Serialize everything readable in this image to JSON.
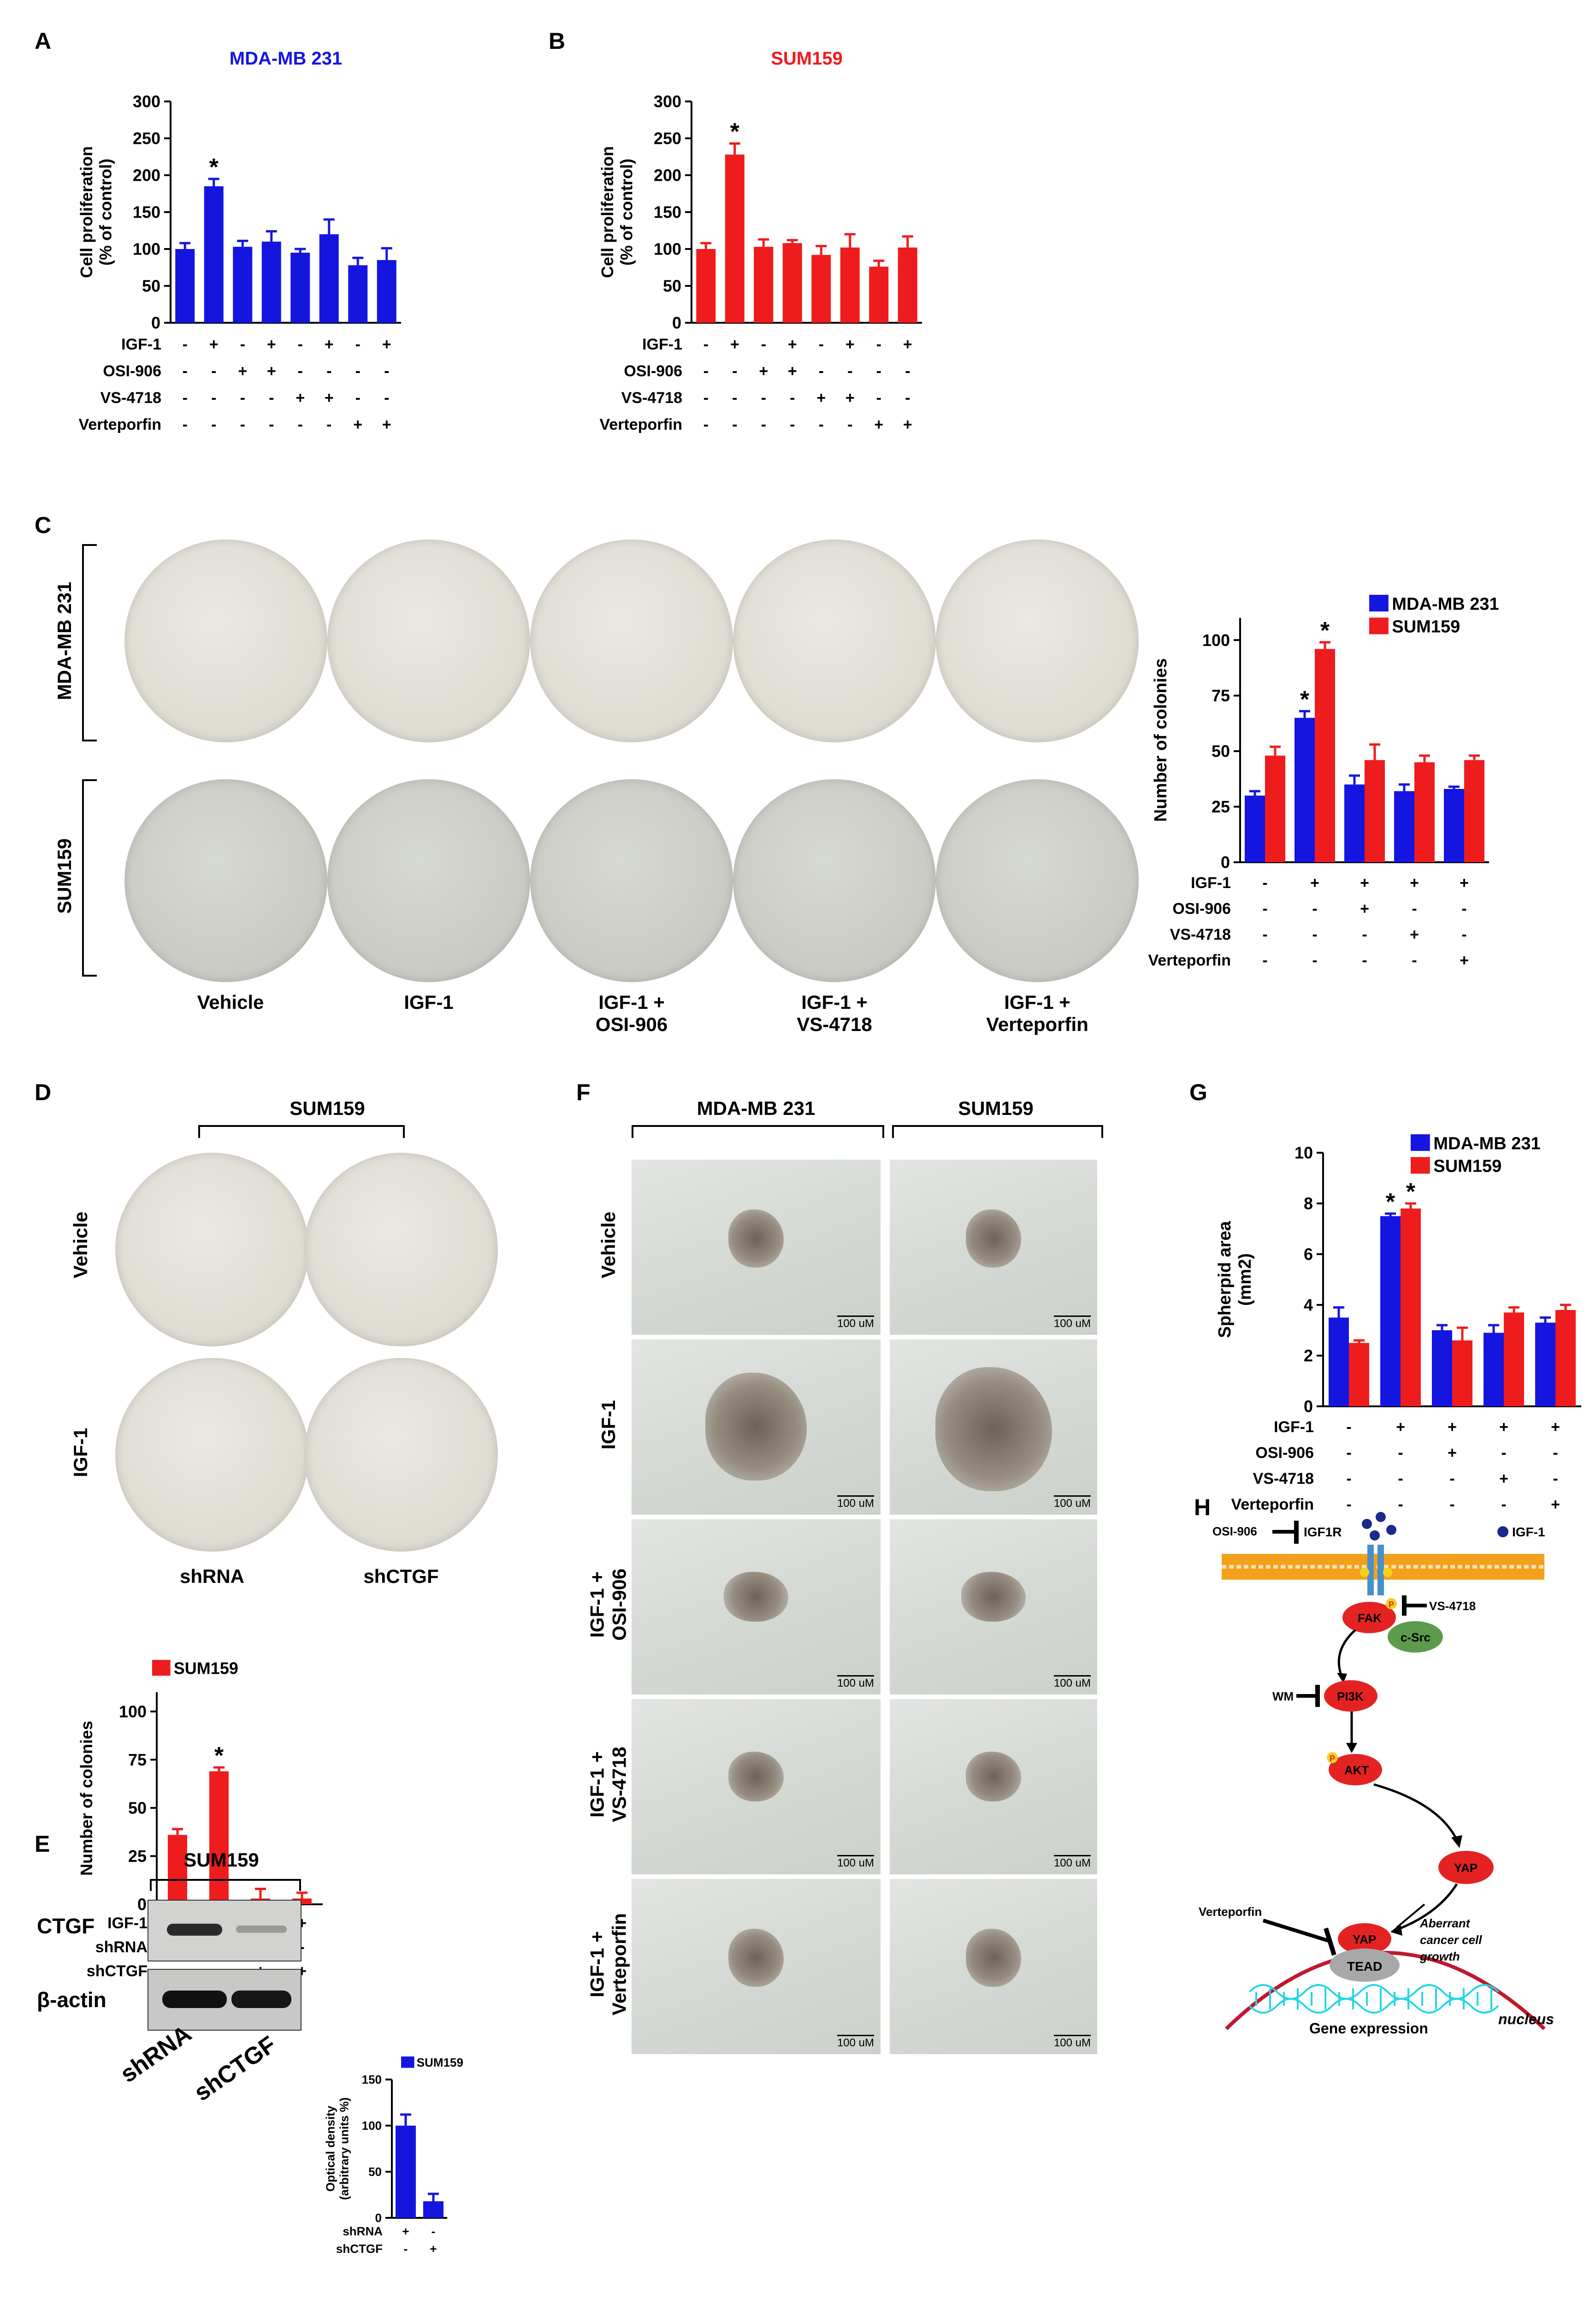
{
  "panels": {
    "A": "A",
    "B": "B",
    "C": "C",
    "D": "D",
    "E": "E",
    "F": "F",
    "G": "G",
    "H": "H"
  },
  "chart_data": [
    {
      "id": "A",
      "type": "bar",
      "title": "MDA-MB 231",
      "title_color": "#1515e0",
      "ylabel": "Cell proliferation (% of control)",
      "ylim": [
        0,
        300
      ],
      "yticks": [
        0,
        50,
        100,
        150,
        200,
        250,
        300
      ],
      "values": [
        100,
        185,
        103,
        110,
        95,
        120,
        78,
        85
      ],
      "errors": [
        8,
        10,
        8,
        14,
        5,
        20,
        10,
        16
      ],
      "significant": [
        1
      ],
      "sig_label": "*",
      "color": "#1515e0",
      "rows": [
        {
          "label": "IGF-1",
          "signs": [
            "-",
            "+",
            "-",
            "+",
            "-",
            "+",
            "-",
            "+"
          ]
        },
        {
          "label": "OSI-906",
          "signs": [
            "-",
            "-",
            "+",
            "+",
            "-",
            "-",
            "-",
            "-"
          ]
        },
        {
          "label": "VS-4718",
          "signs": [
            "-",
            "-",
            "-",
            "-",
            "+",
            "+",
            "-",
            "-"
          ]
        },
        {
          "label": "Verteporfin",
          "signs": [
            "-",
            "-",
            "-",
            "-",
            "-",
            "-",
            "+",
            "+"
          ]
        }
      ]
    },
    {
      "id": "B",
      "type": "bar",
      "title": "SUM159",
      "title_color": "#ee1c1c",
      "ylabel": "Cell proliferation (% of control)",
      "ylim": [
        0,
        300
      ],
      "yticks": [
        0,
        50,
        100,
        150,
        200,
        250,
        300
      ],
      "values": [
        100,
        228,
        103,
        108,
        92,
        102,
        76,
        102
      ],
      "errors": [
        8,
        15,
        10,
        4,
        12,
        18,
        8,
        15
      ],
      "significant": [
        1
      ],
      "sig_label": "*",
      "color": "#ee1c1c",
      "rows": [
        {
          "label": "IGF-1",
          "signs": [
            "-",
            "+",
            "-",
            "+",
            "-",
            "+",
            "-",
            "+"
          ]
        },
        {
          "label": "OSI-906",
          "signs": [
            "-",
            "-",
            "+",
            "+",
            "-",
            "-",
            "-",
            "-"
          ]
        },
        {
          "label": "VS-4718",
          "signs": [
            "-",
            "-",
            "-",
            "-",
            "+",
            "+",
            "-",
            "-"
          ]
        },
        {
          "label": "Verteporfin",
          "signs": [
            "-",
            "-",
            "-",
            "-",
            "-",
            "-",
            "+",
            "+"
          ]
        }
      ]
    },
    {
      "id": "C",
      "type": "bar",
      "ylabel": "Number of colonies",
      "ylim": [
        0,
        110
      ],
      "yticks": [
        0,
        25,
        50,
        75,
        100
      ],
      "legend_position": "top-right",
      "series": [
        {
          "name": "MDA-MB 231",
          "color": "#1515e0",
          "values": [
            30,
            65,
            35,
            32,
            33
          ],
          "errors": [
            2,
            3,
            4,
            3,
            1
          ]
        },
        {
          "name": "SUM159",
          "color": "#ee1c1c",
          "values": [
            48,
            96,
            46,
            45,
            46
          ],
          "errors": [
            4,
            3,
            7,
            3,
            2
          ]
        }
      ],
      "significant": [
        [
          0,
          1
        ],
        [
          1,
          1
        ]
      ],
      "sig_label": "*",
      "rows": [
        {
          "label": "IGF-1",
          "signs": [
            "-",
            "+",
            "+",
            "+",
            "+"
          ]
        },
        {
          "label": "OSI-906",
          "signs": [
            "-",
            "-",
            "+",
            "-",
            "-"
          ]
        },
        {
          "label": "VS-4718",
          "signs": [
            "-",
            "-",
            "-",
            "+",
            "-"
          ]
        },
        {
          "label": "Verteporfin",
          "signs": [
            "-",
            "-",
            "-",
            "-",
            "+"
          ]
        }
      ]
    },
    {
      "id": "D",
      "type": "bar",
      "ylabel": "Number of colonies",
      "ylim": [
        0,
        110
      ],
      "yticks": [
        0,
        25,
        50,
        75,
        100
      ],
      "legend_position": "top-right",
      "series": [
        {
          "name": "SUM159",
          "color": "#ee1c1c",
          "values": [
            36,
            69,
            3,
            3
          ],
          "errors": [
            3,
            2,
            5,
            3
          ]
        }
      ],
      "significant": [
        [
          0,
          1
        ]
      ],
      "sig_label": "*",
      "rows": [
        {
          "label": "IGF-1",
          "signs": [
            "-",
            "+",
            "-",
            "+"
          ]
        },
        {
          "label": "shRNA",
          "signs": [
            "-",
            "+",
            "-",
            "-"
          ]
        },
        {
          "label": "shCTGF",
          "signs": [
            "-",
            "-",
            "+",
            "+"
          ]
        }
      ]
    },
    {
      "id": "E",
      "type": "bar",
      "ylabel": "Optical density (arbitrary units %)",
      "ylim": [
        0,
        150
      ],
      "yticks": [
        0,
        50,
        100,
        150
      ],
      "legend_position": "top-right",
      "series": [
        {
          "name": "SUM159",
          "color": "#1515e0",
          "values": [
            100,
            18
          ],
          "errors": [
            12,
            8
          ]
        }
      ],
      "rows": [
        {
          "label": "shRNA",
          "signs": [
            "+",
            "-"
          ]
        },
        {
          "label": "shCTGF",
          "signs": [
            "-",
            "+"
          ]
        }
      ]
    },
    {
      "id": "G",
      "type": "bar",
      "ylabel": "Spherpid area (mm2)",
      "ylim": [
        0,
        10
      ],
      "yticks": [
        0,
        2,
        4,
        6,
        8,
        10
      ],
      "legend_position": "top-right",
      "series": [
        {
          "name": "MDA-MB 231",
          "color": "#1515e0",
          "values": [
            3.5,
            7.5,
            3.0,
            2.9,
            3.3
          ],
          "errors": [
            0.4,
            0.1,
            0.2,
            0.3,
            0.2
          ]
        },
        {
          "name": "SUM159",
          "color": "#ee1c1c",
          "values": [
            2.5,
            7.8,
            2.6,
            3.7,
            3.8
          ],
          "errors": [
            0.1,
            0.2,
            0.5,
            0.2,
            0.2
          ]
        }
      ],
      "significant": [
        [
          0,
          1
        ],
        [
          1,
          1
        ]
      ],
      "sig_label": "*",
      "rows": [
        {
          "label": "IGF-1",
          "signs": [
            "-",
            "+",
            "+",
            "+",
            "+"
          ]
        },
        {
          "label": "OSI-906",
          "signs": [
            "-",
            "-",
            "+",
            "-",
            "-"
          ]
        },
        {
          "label": "VS-4718",
          "signs": [
            "-",
            "-",
            "-",
            "+",
            "-"
          ]
        },
        {
          "label": "Verteporfin",
          "signs": [
            "-",
            "-",
            "-",
            "-",
            "+"
          ]
        }
      ]
    }
  ],
  "panelC": {
    "row_labels": [
      "MDA-MB 231",
      "SUM159"
    ],
    "col_labels": [
      [
        "Vehicle",
        ""
      ],
      [
        "IGF-1",
        ""
      ],
      [
        "IGF-1 +",
        "OSI-906"
      ],
      [
        "IGF-1 +",
        "VS-4718"
      ],
      [
        "IGF-1 +",
        "Verteporfin"
      ]
    ]
  },
  "panelD": {
    "header": "SUM159",
    "row_labels": [
      "Vehicle",
      "IGF-1"
    ],
    "col_labels": [
      "shRNA",
      "shCTGF"
    ]
  },
  "panelE": {
    "header": "SUM159",
    "band_labels": [
      "CTGF",
      "β-actin"
    ],
    "lane_labels": [
      "shRNA",
      "shCTGF"
    ]
  },
  "panelF": {
    "col_headers": [
      "MDA-MB 231",
      "SUM159"
    ],
    "row_labels": [
      [
        "Vehicle",
        ""
      ],
      [
        "IGF-1",
        ""
      ],
      [
        "IGF-1 +",
        "OSI-906"
      ],
      [
        "IGF-1 +",
        "VS-4718"
      ],
      [
        "IGF-1 +",
        "Verteporfin"
      ]
    ],
    "scale_bar": "100 uM"
  },
  "panelH": {
    "labels": {
      "osi906": "OSI-906",
      "igf1r": "IGF1R",
      "igf1": "IGF-1",
      "vs4718": "VS-4718",
      "fak": "FAK",
      "csrc": "c-Src",
      "wm": "WM",
      "pi3k": "PI3K",
      "akt": "AKT",
      "yap": "YAP",
      "yap2": "YAP",
      "tead": "TEAD",
      "verteporfin": "Verteporfin",
      "aberrant1": "Aberrant",
      "aberrant2": "cancer cell",
      "aberrant3": "growth",
      "gene": "Gene expression",
      "nucleus": "nucleus",
      "p": "P"
    },
    "colors": {
      "membrane": "#f3a11d",
      "node": "#e52222",
      "csrc": "#5c9a4c",
      "tead": "#a8a8a8",
      "dna": "#23d6e6",
      "ligand": "#1a2a8a",
      "receptor": "#4a90c8"
    }
  }
}
